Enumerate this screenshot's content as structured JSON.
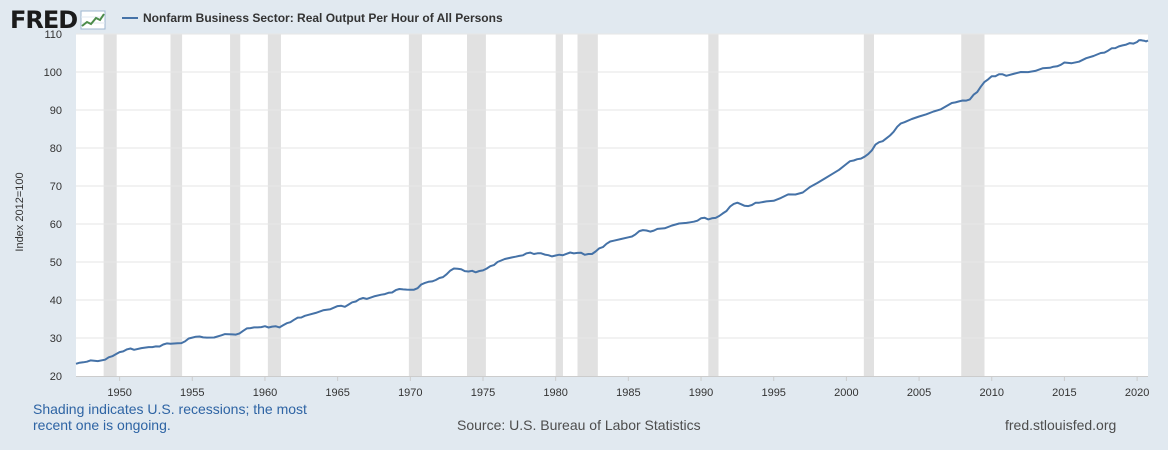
{
  "header": {
    "logo_text": "FRED",
    "logo_icon": "line-chart-icon"
  },
  "colors": {
    "series": "#4572a7",
    "recession": "#e1e1e1",
    "plot_bg": "#ffffff",
    "grid": "#e6e6e6"
  },
  "footer": {
    "note": "Shading indicates U.S. recessions; the most recent one is ongoing.",
    "source": "Source: U.S. Bureau of Labor Statistics",
    "site": "fred.stlouisfed.org"
  },
  "chart_data": {
    "type": "line",
    "title": "",
    "xlabel": "",
    "ylabel": "Index 2012=100",
    "xlim": [
      1947.0,
      2020.75
    ],
    "ylim": [
      20,
      110
    ],
    "x_ticks": [
      1950,
      1955,
      1960,
      1965,
      1970,
      1975,
      1980,
      1985,
      1990,
      1995,
      2000,
      2005,
      2010,
      2015,
      2020
    ],
    "y_ticks": [
      20,
      30,
      40,
      50,
      60,
      70,
      80,
      90,
      100,
      110
    ],
    "grid": true,
    "legend": "top-left",
    "recessions": [
      [
        1948.9,
        1949.8
      ],
      [
        1953.5,
        1954.3
      ],
      [
        1957.6,
        1958.3
      ],
      [
        1960.2,
        1961.1
      ],
      [
        1969.9,
        1970.8
      ],
      [
        1973.9,
        1975.2
      ],
      [
        1980.0,
        1980.5
      ],
      [
        1981.5,
        1982.9
      ],
      [
        1990.5,
        1991.2
      ],
      [
        2001.2,
        2001.9
      ],
      [
        2007.9,
        2009.5
      ]
    ],
    "series": [
      {
        "name": "Nonfarm Business Sector: Real Output Per Hour of All Persons",
        "x": [
          1947.0,
          1947.5,
          1948.0,
          1949.0,
          1949.5,
          1950.0,
          1950.5,
          1951.0,
          1952.0,
          1952.5,
          1953.0,
          1953.5,
          1954.0,
          1954.5,
          1955.0,
          1955.5,
          1956.0,
          1957.0,
          1957.5,
          1958.0,
          1958.5,
          1959.0,
          1959.5,
          1960.0,
          1960.5,
          1961.0,
          1961.5,
          1962.0,
          1962.5,
          1963.0,
          1964.0,
          1965.0,
          1965.5,
          1966.0,
          1966.5,
          1967.0,
          1968.0,
          1968.5,
          1969.0,
          1969.5,
          1970.0,
          1970.5,
          1971.0,
          1971.5,
          1972.0,
          1972.5,
          1973.0,
          1973.5,
          1974.0,
          1974.5,
          1975.0,
          1975.5,
          1976.0,
          1977.0,
          1977.5,
          1978.0,
          1978.5,
          1979.0,
          1979.5,
          1980.0,
          1980.5,
          1981.0,
          1981.5,
          1982.0,
          1982.5,
          1983.0,
          1983.5,
          1984.0,
          1985.0,
          1985.5,
          1986.0,
          1986.5,
          1987.0,
          1988.0,
          1989.0,
          1989.5,
          1990.0,
          1990.5,
          1991.0,
          1991.5,
          1992.0,
          1992.5,
          1993.0,
          1993.5,
          1994.0,
          1995.0,
          1996.0,
          1997.0,
          1998.0,
          1999.0,
          2000.0,
          2000.5,
          2001.0,
          2001.5,
          2002.0,
          2002.5,
          2003.0,
          2003.5,
          2004.0,
          2005.0,
          2006.0,
          2007.0,
          2007.5,
          2008.0,
          2008.5,
          2009.0,
          2009.5,
          2010.0,
          2010.5,
          2011.0,
          2012.0,
          2013.0,
          2014.0,
          2014.5,
          2015.0,
          2016.0,
          2017.0,
          2017.5,
          2018.0,
          2018.5,
          2019.0,
          2019.5,
          2020.0,
          2020.25,
          2020.5,
          2020.75
        ],
        "values": [
          23.2,
          23.6,
          24.1,
          24.3,
          25.2,
          26.3,
          27.0,
          26.9,
          27.6,
          27.8,
          28.3,
          28.5,
          28.6,
          29.1,
          30.1,
          30.4,
          30.1,
          30.7,
          31.0,
          30.9,
          31.9,
          32.6,
          32.8,
          33.1,
          33.0,
          32.8,
          33.9,
          34.8,
          35.4,
          36.1,
          37.3,
          38.4,
          38.2,
          39.4,
          40.2,
          40.3,
          41.4,
          41.9,
          42.6,
          42.8,
          42.7,
          43.1,
          44.5,
          44.9,
          45.8,
          46.8,
          48.3,
          48.1,
          47.5,
          47.3,
          47.8,
          48.9,
          50.0,
          51.2,
          51.6,
          52.3,
          52.1,
          52.3,
          51.8,
          51.7,
          51.8,
          52.5,
          52.4,
          51.9,
          52.1,
          53.6,
          54.8,
          55.6,
          56.5,
          57.3,
          58.4,
          58.0,
          58.7,
          59.6,
          60.3,
          60.6,
          61.5,
          61.2,
          61.6,
          62.8,
          64.6,
          65.6,
          64.8,
          65.0,
          65.6,
          66.1,
          67.8,
          68.3,
          70.8,
          73.1,
          75.8,
          76.7,
          77.2,
          78.4,
          80.9,
          81.8,
          83.3,
          85.6,
          86.8,
          88.3,
          89.6,
          91.3,
          92.0,
          92.5,
          92.8,
          94.7,
          97.4,
          98.9,
          99.4,
          99.0,
          100.0,
          100.3,
          101.1,
          101.5,
          102.5,
          102.7,
          104.2,
          105.0,
          105.6,
          106.3,
          107.0,
          107.6,
          107.9,
          108.4,
          108.2,
          108.3
        ]
      }
    ]
  }
}
